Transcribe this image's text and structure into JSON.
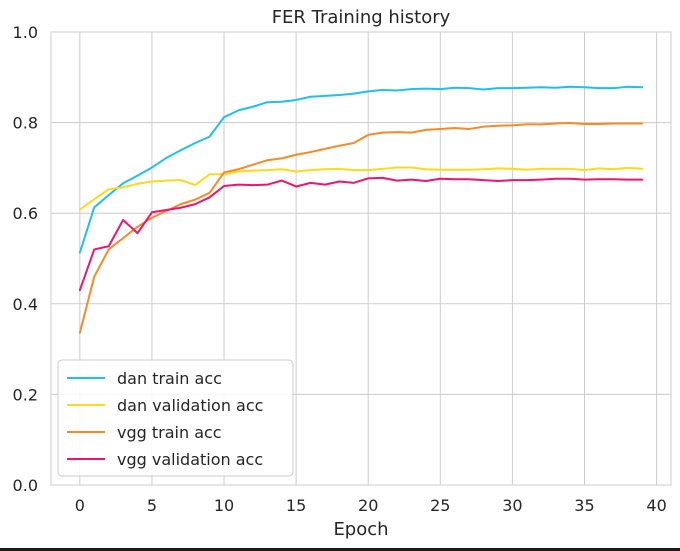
{
  "chart_data": {
    "type": "line",
    "title": "FER Training history",
    "xlabel": "Epoch",
    "ylabel": "",
    "xlim": [
      -2,
      41
    ],
    "ylim": [
      0,
      1.0
    ],
    "xticks": [
      0,
      5,
      10,
      15,
      20,
      25,
      30,
      35,
      40
    ],
    "yticks": [
      0.0,
      0.2,
      0.4,
      0.6,
      0.8,
      1.0
    ],
    "xtick_labels": [
      "0",
      "5",
      "10",
      "15",
      "20",
      "25",
      "30",
      "35",
      "40"
    ],
    "ytick_labels": [
      "0.0",
      "0.2",
      "0.4",
      "0.6",
      "0.8",
      "1.0"
    ],
    "grid": true,
    "legend_position": "bottom-left",
    "x": [
      0,
      1,
      2,
      3,
      4,
      5,
      6,
      7,
      8,
      9,
      10,
      11,
      12,
      13,
      14,
      15,
      16,
      17,
      18,
      19,
      20,
      21,
      22,
      23,
      24,
      25,
      26,
      27,
      28,
      29,
      30,
      31,
      32,
      33,
      34,
      35,
      36,
      37,
      38,
      39
    ],
    "series": [
      {
        "name": "dan train acc",
        "color": "#1fbff0",
        "values": [
          0.513,
          0.613,
          0.64,
          0.666,
          0.683,
          0.701,
          0.722,
          0.739,
          0.755,
          0.769,
          0.812,
          0.827,
          0.835,
          0.845,
          0.846,
          0.85,
          0.857,
          0.859,
          0.861,
          0.864,
          0.869,
          0.872,
          0.871,
          0.874,
          0.875,
          0.874,
          0.877,
          0.876,
          0.873,
          0.876,
          0.876,
          0.877,
          0.878,
          0.877,
          0.879,
          0.878,
          0.876,
          0.876,
          0.879,
          0.878
        ]
      },
      {
        "name": "dan validation acc",
        "color": "#ffd91a",
        "values": [
          0.608,
          0.631,
          0.653,
          0.657,
          0.665,
          0.67,
          0.672,
          0.673,
          0.662,
          0.686,
          0.686,
          0.692,
          0.694,
          0.695,
          0.697,
          0.692,
          0.695,
          0.697,
          0.698,
          0.695,
          0.695,
          0.698,
          0.701,
          0.701,
          0.697,
          0.696,
          0.696,
          0.696,
          0.697,
          0.699,
          0.698,
          0.696,
          0.698,
          0.698,
          0.698,
          0.695,
          0.699,
          0.697,
          0.7,
          0.698
        ]
      },
      {
        "name": "vgg train acc",
        "color": "#f58a27",
        "values": [
          0.336,
          0.46,
          0.52,
          0.545,
          0.57,
          0.59,
          0.605,
          0.62,
          0.63,
          0.645,
          0.69,
          0.697,
          0.707,
          0.717,
          0.721,
          0.729,
          0.735,
          0.742,
          0.749,
          0.755,
          0.773,
          0.778,
          0.779,
          0.778,
          0.784,
          0.786,
          0.788,
          0.786,
          0.791,
          0.793,
          0.794,
          0.796,
          0.796,
          0.798,
          0.799,
          0.797,
          0.797,
          0.798,
          0.798,
          0.798
        ]
      },
      {
        "name": "vgg validation acc",
        "color": "#f0146e",
        "values": [
          0.43,
          0.52,
          0.527,
          0.585,
          0.556,
          0.602,
          0.607,
          0.612,
          0.62,
          0.635,
          0.66,
          0.663,
          0.662,
          0.663,
          0.672,
          0.659,
          0.667,
          0.663,
          0.67,
          0.667,
          0.677,
          0.678,
          0.672,
          0.674,
          0.671,
          0.676,
          0.675,
          0.675,
          0.673,
          0.671,
          0.673,
          0.673,
          0.674,
          0.676,
          0.676,
          0.674,
          0.675,
          0.675,
          0.674,
          0.674
        ]
      }
    ]
  }
}
